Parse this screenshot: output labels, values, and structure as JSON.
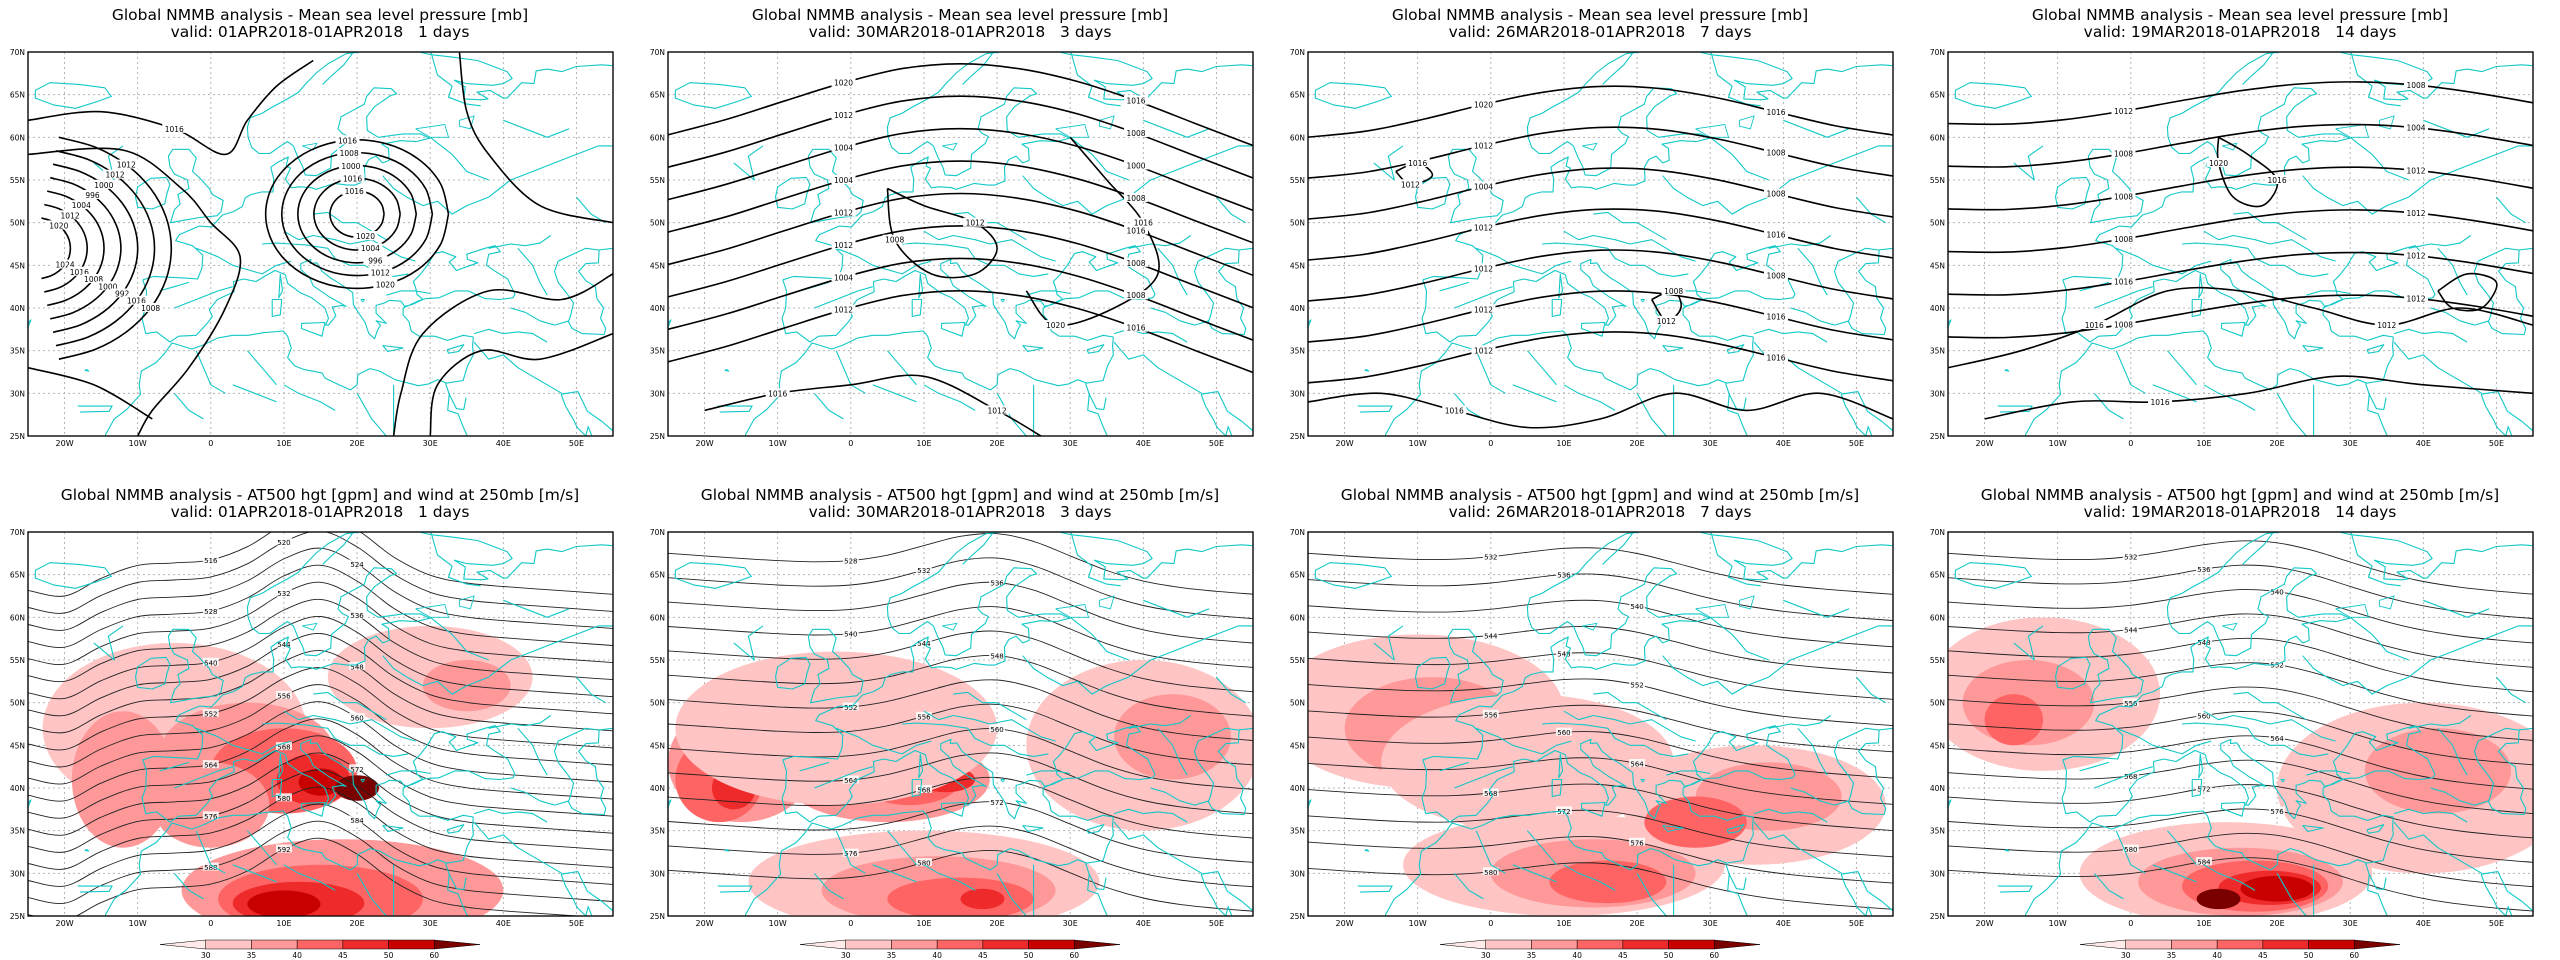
{
  "panels": [
    {
      "title": "Global NMMB analysis - Mean sea level pressure [mb]",
      "valid": "valid: 01APR2018-01APR2018   1 days",
      "type": "mslp"
    },
    {
      "title": "Global NMMB analysis - Mean sea level pressure [mb]",
      "valid": "valid: 30MAR2018-01APR2018   3 days",
      "type": "mslp"
    },
    {
      "title": "Global NMMB analysis - Mean sea level pressure [mb]",
      "valid": "valid: 26MAR2018-01APR2018   7 days",
      "type": "mslp"
    },
    {
      "title": "Global NMMB analysis - Mean sea level pressure [mb]",
      "valid": "valid: 19MAR2018-01APR2018   14 days",
      "type": "mslp"
    },
    {
      "title": "Global NMMB analysis - AT500 hgt [gpm] and wind at 250mb [m/s]",
      "valid": "valid: 01APR2018-01APR2018   1 days",
      "type": "z500"
    },
    {
      "title": "Global NMMB analysis - AT500 hgt [gpm] and wind at 250mb [m/s]",
      "valid": "valid: 30MAR2018-01APR2018   3 days",
      "type": "z500"
    },
    {
      "title": "Global NMMB analysis - AT500 hgt [gpm] and wind at 250mb [m/s]",
      "valid": "valid: 26MAR2018-01APR2018   7 days",
      "type": "z500"
    },
    {
      "title": "Global NMMB analysis - AT500 hgt [gpm] and wind at 250mb [m/s]",
      "valid": "valid: 19MAR2018-01APR2018   14 days",
      "type": "z500"
    }
  ],
  "axes": {
    "lon_labels": [
      "20W",
      "10W",
      "0",
      "10E",
      "20E",
      "30E",
      "40E",
      "50E"
    ],
    "lat_labels": [
      "70N",
      "65N",
      "60N",
      "55N",
      "50N",
      "45N",
      "40N",
      "35N",
      "30N",
      "25N"
    ]
  },
  "mslp_contour_labels": [
    [
      "1024",
      "1020",
      "1016",
      "1012",
      "1008",
      "1004",
      "1000",
      "996",
      "992",
      "1000",
      "1016",
      "1012",
      "1008",
      "1012",
      "1016",
      "1020",
      "1016",
      "1004",
      "1000",
      "996",
      "1008",
      "1012",
      "1016",
      "1020",
      "1016"
    ],
    [
      "1020",
      "1016",
      "1012",
      "1008",
      "1004",
      "1000",
      "1004",
      "1008",
      "1012",
      "1016",
      "1012",
      "1008",
      "1004",
      "1008",
      "1012",
      "1016",
      "1012",
      "1008",
      "1016",
      "1020",
      "1016",
      "1012",
      "1016"
    ],
    [
      "1020",
      "1016",
      "1012",
      "1008",
      "1004",
      "1008",
      "1012",
      "1016",
      "1012",
      "1008",
      "1012",
      "1016",
      "1012",
      "1016",
      "1016",
      "1012",
      "1008",
      "1012",
      "1016"
    ],
    [
      "1012",
      "1008",
      "1008",
      "1004",
      "1008",
      "1012",
      "1008",
      "1012",
      "1016",
      "1012",
      "1008",
      "1012",
      "1016",
      "1020",
      "1016",
      "1012",
      "1016"
    ]
  ],
  "z500_contour_labels": [
    [
      "516",
      "520",
      "524",
      "528",
      "532",
      "536",
      "540",
      "544",
      "548",
      "552",
      "556",
      "560",
      "564",
      "568",
      "572",
      "576",
      "580",
      "584",
      "588",
      "592"
    ],
    [
      "528",
      "532",
      "536",
      "540",
      "544",
      "548",
      "552",
      "556",
      "560",
      "564",
      "568",
      "572",
      "576",
      "580"
    ],
    [
      "532",
      "536",
      "540",
      "544",
      "548",
      "552",
      "556",
      "560",
      "564",
      "568",
      "572",
      "576",
      "580"
    ],
    [
      "532",
      "536",
      "540",
      "544",
      "548",
      "552",
      "556",
      "560",
      "564",
      "568",
      "572",
      "576",
      "580",
      "584"
    ]
  ],
  "colorbar": {
    "labels": [
      "30",
      "35",
      "40",
      "45",
      "50",
      "60"
    ],
    "colors": [
      "#ffe9e9",
      "#ffc4c4",
      "#ff9898",
      "#ff6464",
      "#ee2a2a",
      "#c80000",
      "#7a0000"
    ]
  },
  "colors": {
    "coast": "#12c8c8",
    "grid": "#a5a5a5",
    "contour_mslp": "#000000",
    "contour_z500": "#222222"
  }
}
